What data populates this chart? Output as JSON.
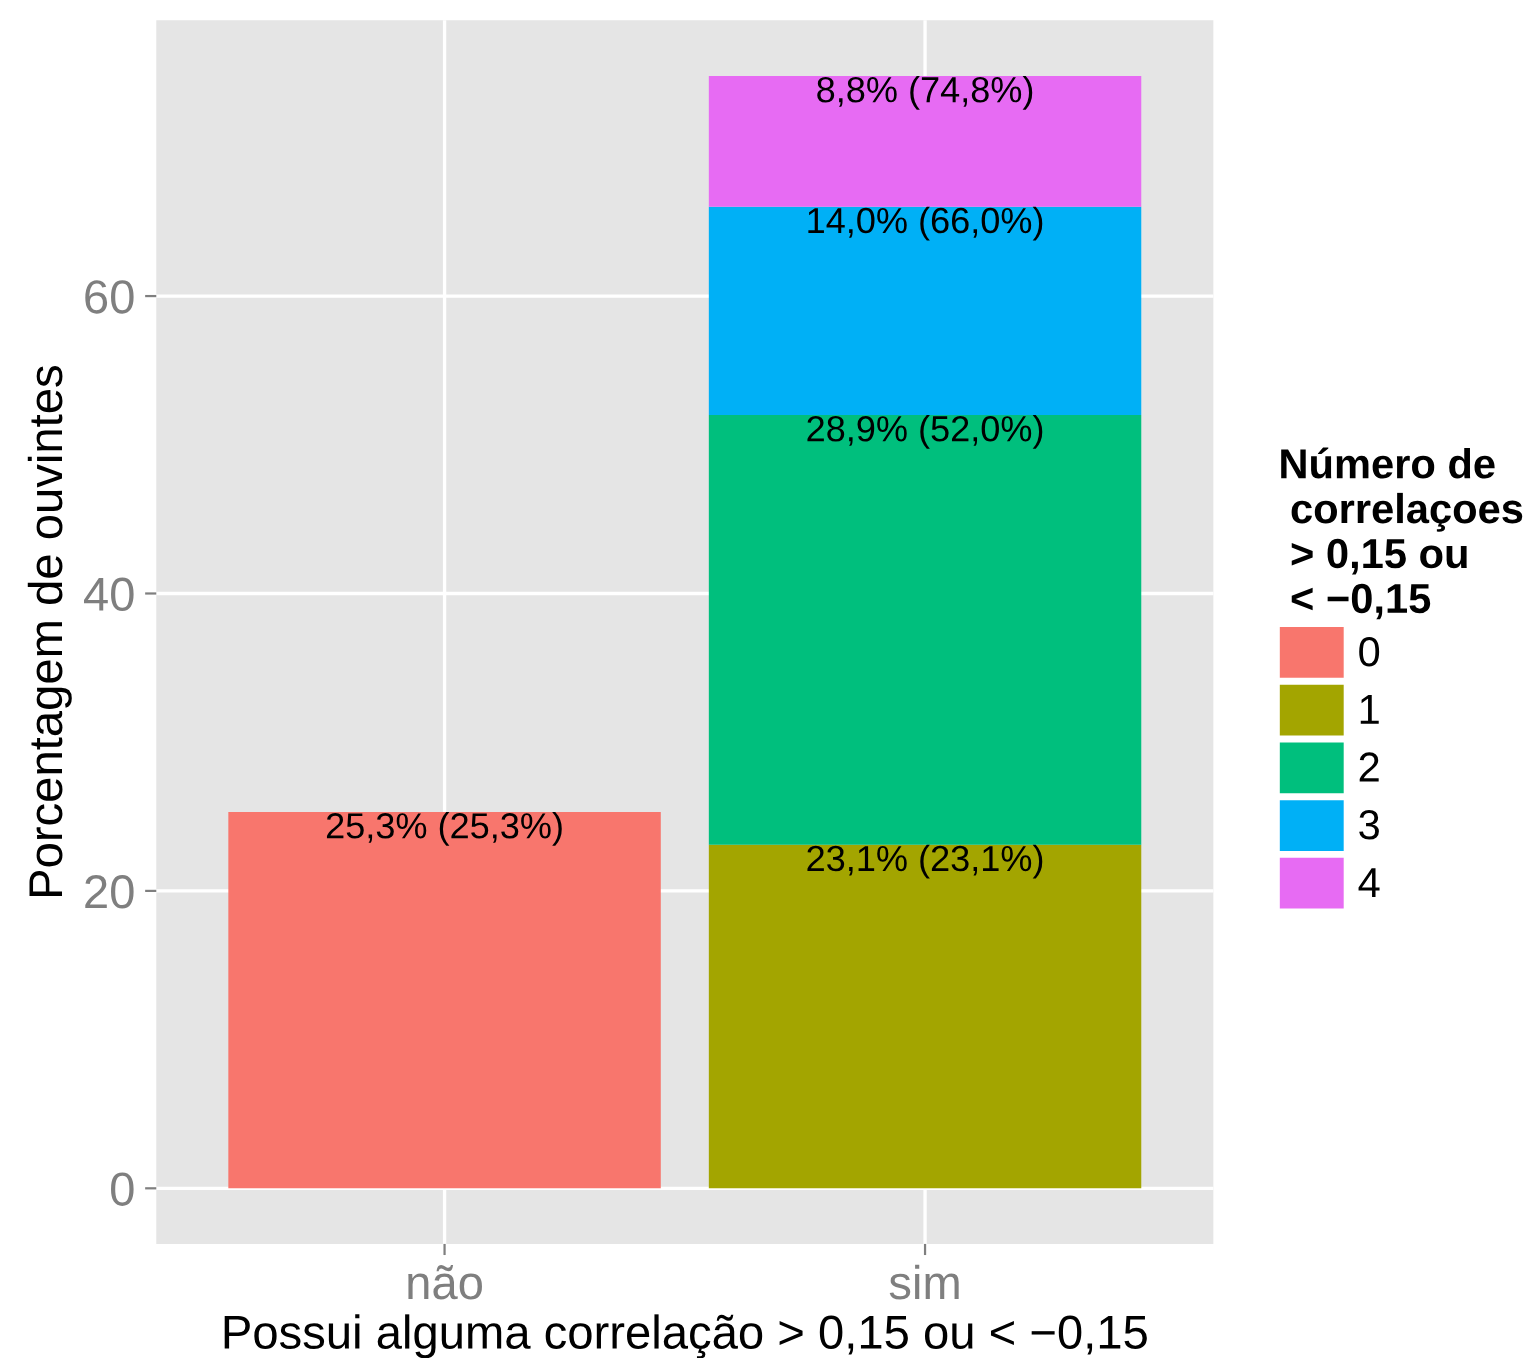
{
  "chart_data": {
    "type": "bar",
    "stacked": true,
    "xlabel": "Possui alguma correlação > 0,15 ou < −0,15",
    "ylabel": "Porcentagem de ouvintes",
    "legend_title": "Número de\n correlaçoes\n > 0,15 ou\n < −0,15",
    "categories": [
      "não",
      "sim"
    ],
    "series": [
      {
        "name": "0",
        "color": "#f8766d",
        "values": [
          25.3,
          null
        ],
        "value_labels": [
          "25,3% (25,3%)",
          null
        ]
      },
      {
        "name": "1",
        "color": "#a3a500",
        "values": [
          null,
          23.1
        ],
        "value_labels": [
          null,
          "23,1% (23,1%)"
        ]
      },
      {
        "name": "2",
        "color": "#00bf7d",
        "values": [
          null,
          28.9
        ],
        "value_labels": [
          null,
          "28,9% (52,0%)"
        ]
      },
      {
        "name": "3",
        "color": "#00b0f6",
        "values": [
          null,
          14.0
        ],
        "value_labels": [
          null,
          "14,0% (66,0%)"
        ]
      },
      {
        "name": "4",
        "color": "#e76bf3",
        "values": [
          null,
          8.8
        ],
        "value_labels": [
          null,
          "8,8% (74,8%)"
        ]
      }
    ],
    "ylim": [
      -3.74,
      78.54
    ],
    "yticks": [
      0,
      20,
      40,
      60
    ],
    "grid": true,
    "legend": "right"
  }
}
